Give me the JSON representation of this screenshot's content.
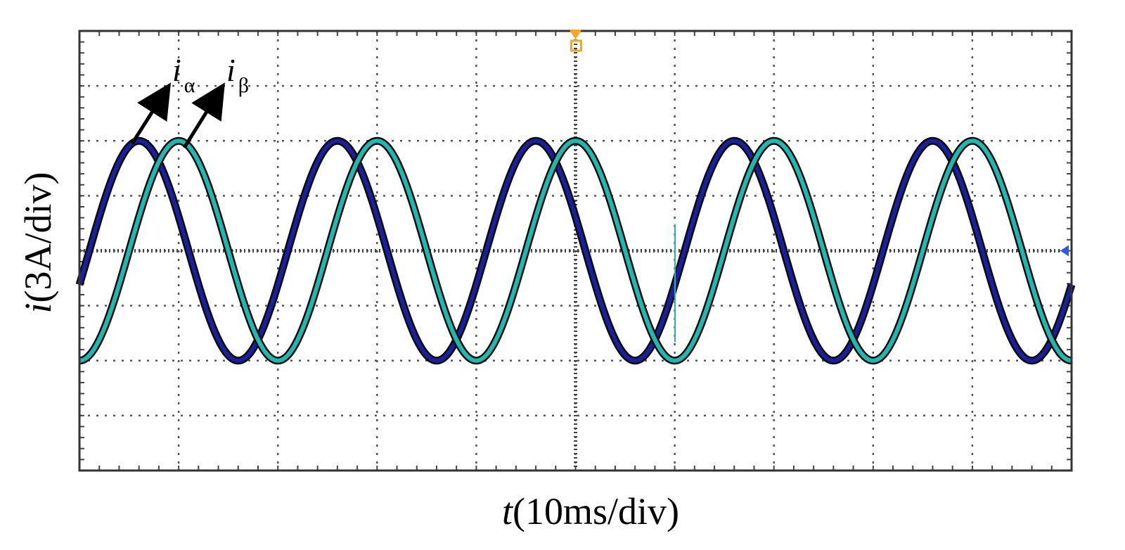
{
  "chart_data": {
    "type": "line",
    "xlabel": {
      "var": "t",
      "unit": "(10ms/div)"
    },
    "ylabel": {
      "var": "i",
      "unit": "(3A/div)"
    },
    "x_divisions": 10,
    "y_divisions": 8,
    "x_unit_per_div_ms": 10,
    "y_unit_per_div_A": 3,
    "xlim_ms": [
      0,
      100
    ],
    "ylim_A": [
      -12,
      12
    ],
    "grid": true,
    "series": [
      {
        "name": "i_α",
        "label_base": "i",
        "label_sub": "α",
        "color": "#1a1f9a",
        "amplitude_A": 6,
        "period_ms": 20,
        "peaks_ms": [
          6,
          26,
          46,
          66,
          86
        ],
        "troughs_ms": [
          16,
          36,
          56,
          76,
          96
        ]
      },
      {
        "name": "i_β",
        "label_base": "i",
        "label_sub": "β",
        "color": "#1fb8b0",
        "amplitude_A": 6,
        "period_ms": 20,
        "peaks_ms": [
          10,
          30,
          50,
          70,
          90
        ],
        "troughs_ms": [
          0,
          20,
          40,
          60,
          80,
          100
        ]
      }
    ],
    "annotations": [
      "trigger marker at top center",
      "ground-level marker at right edge"
    ]
  }
}
